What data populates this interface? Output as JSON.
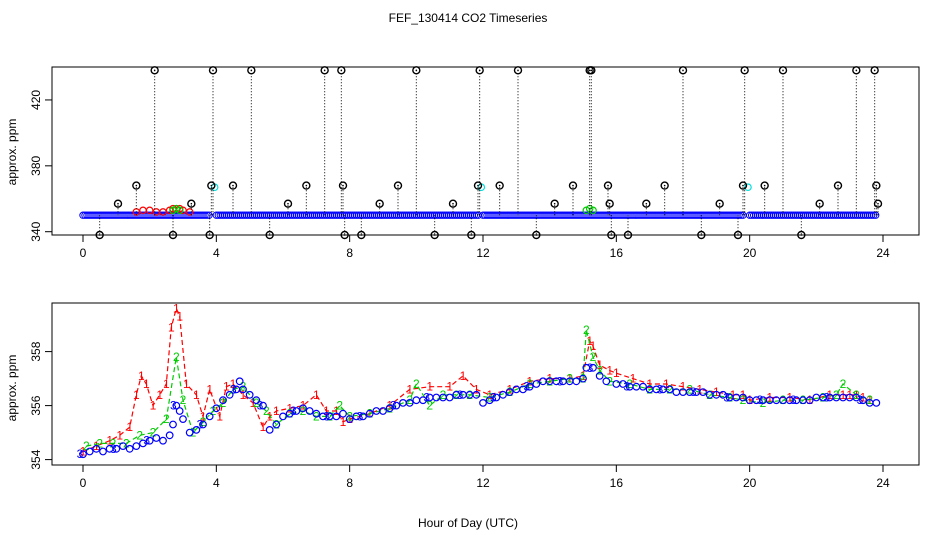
{
  "figure": {
    "title": "FEF_130414  CO2 Timeseries",
    "xlabel": "Hour of Day (UTC)"
  },
  "colors": {
    "red": "#ff0000",
    "green": "#00cc00",
    "blue": "#0000ff",
    "cyan": "#00dddd",
    "black": "#000000"
  },
  "chart_data": [
    {
      "type": "scatter",
      "name": "top-panel",
      "ylabel": "approx. ppm",
      "xlim": [
        0,
        24
      ],
      "ylim": [
        338,
        440
      ],
      "x_ticks": [
        0,
        4,
        8,
        12,
        16,
        20,
        24
      ],
      "y_ticks": [
        340,
        380,
        420
      ],
      "baseline_ppm": 350,
      "series": [
        {
          "name": "red",
          "color": "#ff0000",
          "x": [
            1.6,
            1.8,
            2.0,
            2.2,
            2.4,
            2.6,
            2.7,
            2.8,
            2.9,
            3.0,
            3.2
          ],
          "y": [
            352,
            353,
            353,
            352,
            352,
            353,
            354,
            354,
            354,
            353,
            352
          ]
        },
        {
          "name": "green",
          "color": "#00cc00",
          "x": [
            2.7,
            2.8,
            2.9,
            15.1,
            15.2,
            15.3
          ],
          "y": [
            353,
            354,
            353,
            353,
            354,
            353
          ]
        },
        {
          "name": "cyan",
          "color": "#00dddd",
          "x": [
            3.95,
            11.95,
            19.95
          ],
          "y": [
            367,
            367,
            367
          ]
        },
        {
          "name": "black-circles",
          "color": "#000000",
          "x": [
            0.5,
            1.05,
            1.6,
            2.15,
            2.7,
            3.25,
            3.8,
            3.85,
            3.9,
            4.5,
            5.05,
            5.6,
            6.15,
            6.7,
            7.25,
            7.75,
            7.8,
            7.85,
            8.35,
            8.9,
            9.45,
            10.0,
            10.55,
            11.1,
            11.65,
            11.85,
            11.9,
            12.5,
            13.05,
            13.6,
            14.15,
            14.7,
            15.2,
            15.25,
            15.75,
            15.8,
            15.85,
            16.35,
            16.9,
            17.45,
            18.0,
            18.55,
            19.1,
            19.65,
            19.8,
            19.85,
            20.45,
            21.0,
            21.55,
            22.1,
            22.65,
            23.2,
            23.75,
            23.8,
            23.85
          ],
          "y": [
            338,
            357,
            368,
            438,
            338,
            357,
            338,
            368,
            438,
            368,
            438,
            338,
            357,
            368,
            438,
            438,
            368,
            338,
            338,
            357,
            368,
            438,
            338,
            357,
            338,
            368,
            438,
            368,
            438,
            338,
            357,
            368,
            438,
            438,
            368,
            357,
            338,
            338,
            357,
            368,
            438,
            338,
            357,
            338,
            368,
            438,
            368,
            438,
            338,
            357,
            368,
            438,
            438,
            368,
            357
          ]
        }
      ]
    },
    {
      "type": "scatter",
      "name": "bottom-panel",
      "ylabel": "approx. ppm",
      "xlim": [
        0,
        24
      ],
      "ylim": [
        353.8,
        359.8
      ],
      "x_ticks": [
        0,
        4,
        8,
        12,
        16,
        20,
        24
      ],
      "y_ticks": [
        354,
        356,
        358
      ],
      "series": [
        {
          "name": "1",
          "color": "#ff0000",
          "x": [
            0.0,
            0.4,
            0.8,
            1.1,
            1.4,
            1.6,
            1.75,
            1.9,
            2.1,
            2.3,
            2.5,
            2.65,
            2.8,
            2.9,
            3.1,
            3.4,
            3.6,
            3.8,
            4.1,
            4.3,
            4.5,
            4.8,
            5.1,
            5.4,
            5.6,
            5.8,
            6.2,
            6.6,
            7.0,
            7.3,
            7.6,
            7.8,
            8.0,
            8.6,
            9.2,
            9.8,
            10.4,
            11.0,
            11.4,
            11.8,
            12.2,
            12.8,
            13.4,
            14.0,
            14.6,
            15.0,
            15.2,
            15.3,
            15.5,
            15.8,
            16.0,
            16.5,
            17.0,
            17.5,
            18.0,
            18.5,
            19.0,
            19.5,
            19.8,
            20.0,
            20.6,
            21.2,
            21.8,
            22.4,
            22.8,
            23.0,
            23.2,
            23.4,
            23.6
          ],
          "y": [
            354.3,
            354.5,
            354.7,
            354.9,
            355.2,
            356.4,
            357.1,
            356.8,
            356.0,
            356.4,
            356.8,
            358.9,
            359.6,
            359.3,
            356.8,
            356.4,
            355.6,
            356.6,
            355.6,
            356.7,
            356.8,
            356.4,
            356.1,
            355.2,
            355.6,
            355.8,
            355.9,
            356.0,
            356.4,
            355.8,
            355.8,
            355.4,
            355.5,
            355.7,
            356.0,
            356.6,
            356.7,
            356.7,
            357.1,
            356.6,
            356.4,
            356.6,
            356.9,
            357.0,
            357.0,
            357.1,
            358.4,
            358.2,
            357.5,
            357.3,
            357.2,
            357.0,
            356.8,
            356.8,
            356.7,
            356.6,
            356.5,
            356.4,
            356.4,
            356.2,
            356.3,
            356.3,
            356.2,
            356.4,
            356.4,
            356.4,
            356.4,
            356.3,
            356.2
          ]
        },
        {
          "name": "2",
          "color": "#00cc00",
          "x": [
            0.1,
            0.5,
            0.9,
            1.3,
            1.7,
            2.1,
            2.5,
            2.8,
            3.0,
            3.3,
            3.6,
            3.9,
            4.2,
            4.5,
            4.8,
            5.2,
            5.5,
            5.8,
            6.2,
            6.6,
            7.0,
            7.4,
            7.7,
            8.0,
            8.6,
            9.2,
            9.8,
            10.0,
            10.4,
            10.8,
            11.2,
            11.6,
            12.2,
            12.8,
            13.4,
            14.0,
            14.6,
            15.0,
            15.1,
            15.3,
            15.5,
            15.8,
            16.4,
            17.0,
            17.6,
            18.2,
            18.8,
            19.4,
            19.8,
            20.4,
            21.0,
            21.6,
            22.2,
            22.6,
            22.8,
            23.2,
            23.6
          ],
          "y": [
            354.5,
            354.6,
            354.6,
            354.6,
            354.9,
            355.0,
            355.5,
            357.8,
            356.2,
            355.0,
            355.4,
            355.8,
            356.1,
            356.6,
            356.7,
            356.1,
            355.8,
            355.3,
            355.7,
            355.8,
            355.6,
            355.6,
            356.0,
            355.6,
            355.7,
            355.9,
            356.2,
            356.8,
            356.0,
            356.4,
            356.4,
            356.4,
            356.3,
            356.5,
            356.8,
            356.9,
            357.0,
            357.0,
            358.8,
            357.8,
            357.3,
            356.9,
            356.8,
            356.6,
            356.6,
            356.6,
            356.4,
            356.3,
            356.2,
            356.1,
            356.2,
            356.2,
            356.3,
            356.4,
            356.8,
            356.4,
            356.2
          ]
        },
        {
          "name": "3",
          "color": "#0000ff",
          "x": [
            0.0,
            0.2,
            0.4,
            0.6,
            0.8,
            1.0,
            1.2,
            1.4,
            1.6,
            1.8,
            2.0,
            2.2,
            2.4,
            2.6,
            2.7,
            2.8,
            2.9,
            3.0,
            3.2,
            3.4,
            3.6,
            3.8,
            4.0,
            4.2,
            4.4,
            4.6,
            4.7,
            4.8,
            5.0,
            5.2,
            5.4,
            5.6,
            5.8,
            6.0,
            6.2,
            6.4,
            6.6,
            6.8,
            7.0,
            7.2,
            7.4,
            7.6,
            7.8,
            8.0,
            8.2,
            8.4,
            8.6,
            8.8,
            9.0,
            9.2,
            9.4,
            9.6,
            9.8,
            10.0,
            10.2,
            10.4,
            10.6,
            10.8,
            11.0,
            11.2,
            11.4,
            11.6,
            11.8,
            12.0,
            12.2,
            12.4,
            12.6,
            12.8,
            13.0,
            13.2,
            13.4,
            13.6,
            13.8,
            14.0,
            14.2,
            14.4,
            14.6,
            14.8,
            15.0,
            15.1,
            15.3,
            15.5,
            15.7,
            16.0,
            16.2,
            16.4,
            16.6,
            16.8,
            17.0,
            17.2,
            17.4,
            17.6,
            17.8,
            18.0,
            18.2,
            18.4,
            18.6,
            18.8,
            19.0,
            19.2,
            19.4,
            19.6,
            19.8,
            20.0,
            20.2,
            20.4,
            20.6,
            20.8,
            21.0,
            21.2,
            21.4,
            21.6,
            21.8,
            22.0,
            22.2,
            22.4,
            22.6,
            22.8,
            23.0,
            23.2,
            23.4,
            23.6,
            23.8
          ],
          "y": [
            354.2,
            354.3,
            354.4,
            354.3,
            354.4,
            354.4,
            354.5,
            354.4,
            354.5,
            354.6,
            354.7,
            354.8,
            354.7,
            354.9,
            355.3,
            356.0,
            355.8,
            355.5,
            355.0,
            355.1,
            355.3,
            355.6,
            355.9,
            356.2,
            356.4,
            356.6,
            356.9,
            356.6,
            356.4,
            356.2,
            356.0,
            355.1,
            355.3,
            355.6,
            355.7,
            355.8,
            355.9,
            355.8,
            355.7,
            355.6,
            355.6,
            355.6,
            355.7,
            355.5,
            355.6,
            355.6,
            355.7,
            355.8,
            355.8,
            355.9,
            356.0,
            356.1,
            356.1,
            356.2,
            356.2,
            356.3,
            356.3,
            356.3,
            356.3,
            356.4,
            356.4,
            356.4,
            356.4,
            356.1,
            356.2,
            356.3,
            356.4,
            356.5,
            356.6,
            356.6,
            356.7,
            356.8,
            356.9,
            356.9,
            356.9,
            356.9,
            356.9,
            356.9,
            357.0,
            357.4,
            357.4,
            357.1,
            356.9,
            356.8,
            356.8,
            356.7,
            356.7,
            356.7,
            356.6,
            356.6,
            356.6,
            356.6,
            356.5,
            356.5,
            356.5,
            356.5,
            356.5,
            356.4,
            356.4,
            356.4,
            356.3,
            356.3,
            356.3,
            356.2,
            356.2,
            356.2,
            356.2,
            356.2,
            356.2,
            356.2,
            356.2,
            356.2,
            356.2,
            356.3,
            356.3,
            356.3,
            356.3,
            356.3,
            356.3,
            356.3,
            356.2,
            356.1,
            356.1
          ]
        }
      ]
    }
  ]
}
